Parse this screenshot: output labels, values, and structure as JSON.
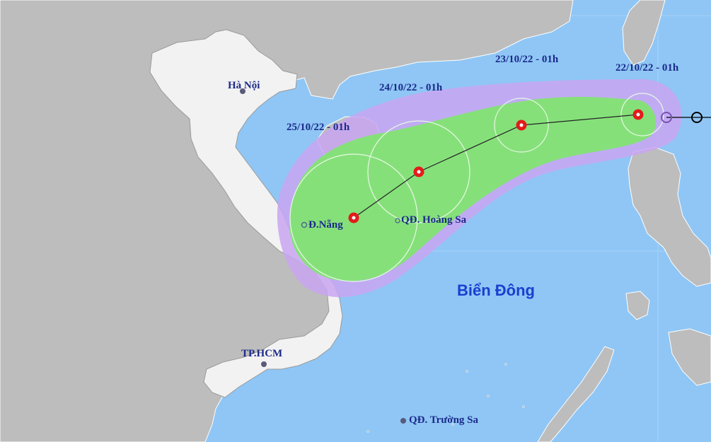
{
  "map": {
    "sea_label": "Biển Đông",
    "places": {
      "hanoi": "Hà Nội",
      "danang": "Đ.Nẵng",
      "hcm": "TP.HCM",
      "hoangsa": "QĐ. Hoàng Sa",
      "truongsa": "QĐ. Trường Sa"
    },
    "forecast_times": [
      "22/10/22 - 01h",
      "23/10/22 - 01h",
      "24/10/22 - 01h",
      "25/10/22 - 01h"
    ],
    "colors": {
      "sea": "#8fc6f5",
      "land": "#bdbdbd",
      "risk_zone": "#c9a6f2",
      "strong_wind_zone": "#86e07a",
      "storm_center": "#e31b1b",
      "past_track": "#000000"
    }
  }
}
